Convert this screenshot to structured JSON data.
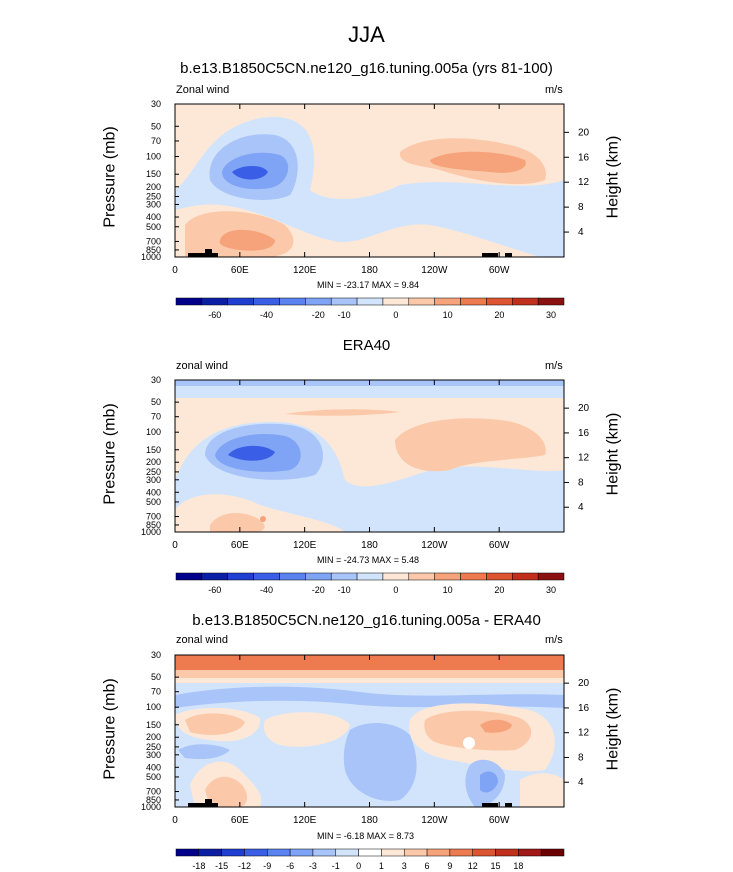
{
  "figure": {
    "title": "JJA"
  },
  "colors": {
    "palette_wind": [
      "#00008b",
      "#0a1fa6",
      "#1f3fd0",
      "#3a5fe6",
      "#5a82f0",
      "#7fa3f5",
      "#a8c4f8",
      "#d2e4fb",
      "#fde8d8",
      "#fbc9a9",
      "#f6a27a",
      "#ee7a4f",
      "#dd5530",
      "#c0301c",
      "#8b1010"
    ],
    "palette_diff": [
      "#00008b",
      "#0a1fa6",
      "#1f3fd0",
      "#3a5fe6",
      "#5a82f0",
      "#7fa3f5",
      "#a8c4f8",
      "#d2e4fb",
      "#ffffff",
      "#fde8d8",
      "#fbc9a9",
      "#f6a27a",
      "#ee7a4f",
      "#dd5530",
      "#c0301c",
      "#a01818",
      "#6b0000"
    ],
    "topography": "#000000"
  },
  "chart_data": [
    {
      "type": "heatmap",
      "title": "b.e13.B1850C5CN.ne120_g16.tuning.005a (yrs 81-100)",
      "left_label": "Zonal wind",
      "right_label": "m/s",
      "xlabel": "",
      "ylabel": "Pressure (mb)",
      "ylabel_right": "Height (km)",
      "x_ticks": [
        "0",
        "60E",
        "120E",
        "180",
        "120W",
        "60W"
      ],
      "y_ticks": [
        "30",
        "50",
        "70",
        "100",
        "150",
        "200",
        "250",
        "300",
        "400",
        "500",
        "700",
        "850",
        "1000"
      ],
      "y_ticks_right": [
        "20",
        "16",
        "12",
        "8",
        "4"
      ],
      "stats": "MIN = -23.17  MAX =  9.84",
      "colorbar_labels": [
        "-60",
        "-40",
        "-20",
        "-10",
        "0",
        "10",
        "20",
        "30"
      ]
    },
    {
      "type": "heatmap",
      "title": "ERA40",
      "left_label": "zonal wind",
      "right_label": "m/s",
      "xlabel": "",
      "ylabel": "Pressure (mb)",
      "ylabel_right": "Height (km)",
      "x_ticks": [
        "0",
        "60E",
        "120E",
        "180",
        "120W",
        "60W"
      ],
      "y_ticks": [
        "30",
        "50",
        "70",
        "100",
        "150",
        "200",
        "250",
        "300",
        "400",
        "500",
        "700",
        "850",
        "1000"
      ],
      "y_ticks_right": [
        "20",
        "16",
        "12",
        "8",
        "4"
      ],
      "stats": "MIN = -24.73  MAX =  5.48",
      "colorbar_labels": [
        "-60",
        "-40",
        "-20",
        "-10",
        "0",
        "10",
        "20",
        "30"
      ]
    },
    {
      "type": "heatmap",
      "title": "b.e13.B1850C5CN.ne120_g16.tuning.005a - ERA40",
      "left_label": "zonal wind",
      "right_label": "m/s",
      "xlabel": "",
      "ylabel": "Pressure (mb)",
      "ylabel_right": "Height (km)",
      "x_ticks": [
        "0",
        "60E",
        "120E",
        "180",
        "120W",
        "60W"
      ],
      "y_ticks": [
        "30",
        "50",
        "70",
        "100",
        "150",
        "200",
        "250",
        "300",
        "400",
        "500",
        "700",
        "850",
        "1000"
      ],
      "y_ticks_right": [
        "20",
        "16",
        "12",
        "8",
        "4"
      ],
      "stats": "MIN = -6.18  MAX =  8.73",
      "colorbar_labels": [
        "-18",
        "-15",
        "-12",
        "-9",
        "-6",
        "-3",
        "-1",
        "0",
        "1",
        "3",
        "6",
        "9",
        "12",
        "15",
        "18"
      ]
    }
  ]
}
